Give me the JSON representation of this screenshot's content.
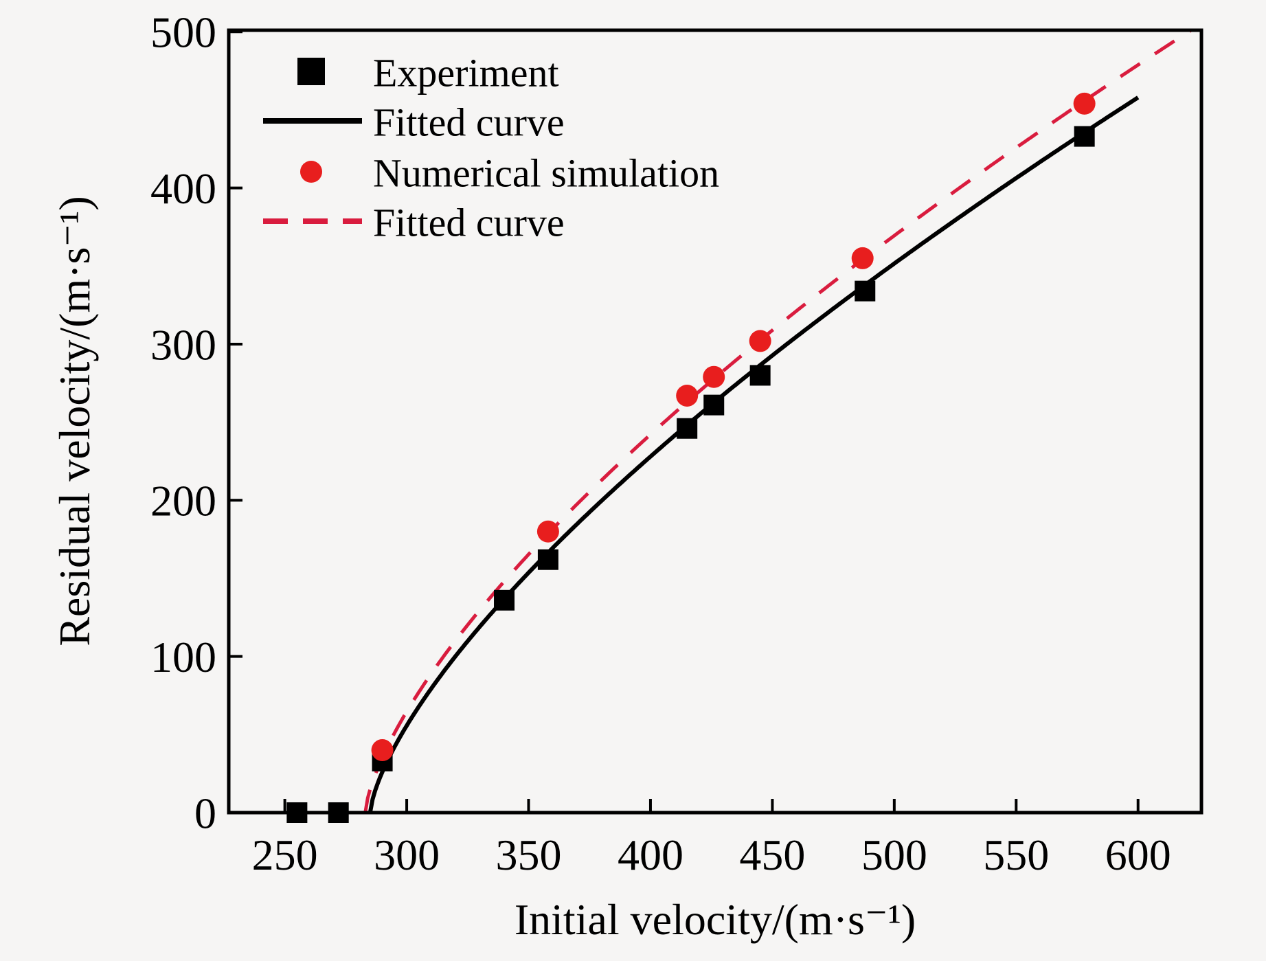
{
  "figure": {
    "background": "#f6f5f4",
    "frame_color": "#000000"
  },
  "chart_data": {
    "type": "scatter",
    "title": "",
    "xlabel": "Initial velocity/(m·s⁻¹)",
    "ylabel": "Residual velocity/(m·s⁻¹)",
    "xlim": [
      227,
      626
    ],
    "ylim": [
      0,
      501
    ],
    "xticks": [
      250,
      300,
      350,
      400,
      450,
      500,
      550,
      600
    ],
    "yticks": [
      0,
      100,
      200,
      300,
      400,
      500
    ],
    "grid": false,
    "legend_position": "top-left",
    "series": [
      {
        "name": "Experiment",
        "type": "scatter",
        "marker": "square",
        "color": "#000000",
        "points": [
          [
            255,
            0
          ],
          [
            272,
            0
          ],
          [
            290,
            33
          ],
          [
            340,
            136
          ],
          [
            358,
            162
          ],
          [
            415,
            246
          ],
          [
            426,
            261
          ],
          [
            445,
            280
          ],
          [
            488,
            334
          ],
          [
            578,
            433
          ]
        ]
      },
      {
        "name": "Fitted curve",
        "type": "line",
        "style": "solid",
        "color": "#000000",
        "model": {
          "formula": "vr = a*(vi - v0)^n",
          "a": 8.55,
          "v0": 285,
          "n": 0.692,
          "domain": [
            285,
            600
          ]
        }
      },
      {
        "name": "Numerical simulation",
        "type": "scatter",
        "marker": "circle",
        "color": "#e81e1e",
        "points": [
          [
            290,
            40
          ],
          [
            358,
            180
          ],
          [
            415,
            267
          ],
          [
            426,
            279
          ],
          [
            445,
            302
          ],
          [
            487,
            355
          ],
          [
            578,
            454
          ]
        ]
      },
      {
        "name": "Fitted curve",
        "type": "line",
        "style": "dashed",
        "color": "#d91c3e",
        "model": {
          "formula": "vr = a*(vi - v0)^n",
          "a": 9.32,
          "v0": 283,
          "n": 0.684,
          "domain": [
            283,
            626
          ]
        }
      }
    ]
  }
}
